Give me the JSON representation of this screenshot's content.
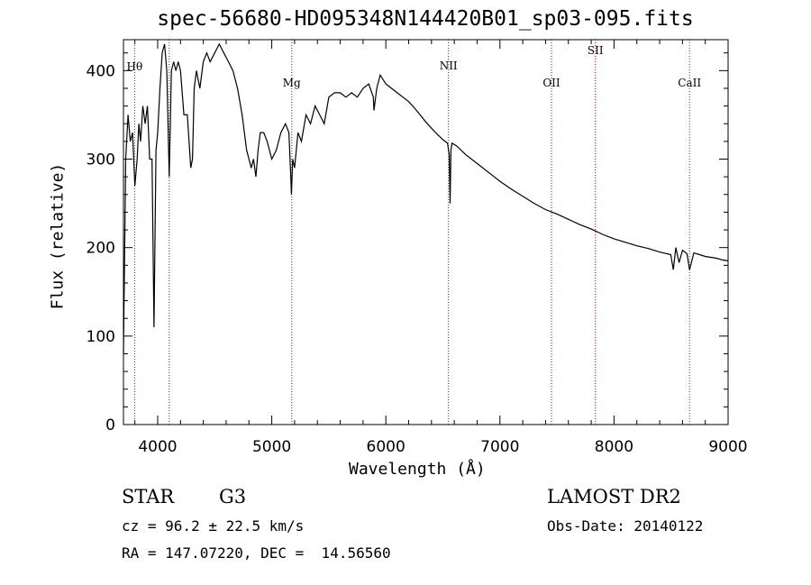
{
  "header": {
    "title": "spec-56680-HD095348N144420B01_sp03-095.fits"
  },
  "info": {
    "object_class": "STAR",
    "subclass": "G3",
    "redshift_line": "cz = 96.2 ± 22.5 km/s",
    "coords_line": "RA = 147.07220, DEC =  14.56560",
    "survey": "LAMOST DR2",
    "obs_date_line": "Obs-Date: 20140122"
  },
  "chart_data": {
    "type": "line",
    "title": "spec-56680-HD095348N144420B01_sp03-095.fits",
    "xlabel": "Wavelength (Å)",
    "ylabel": "Flux (relative)",
    "xlim": [
      3700,
      9000
    ],
    "ylim": [
      0,
      435
    ],
    "x_ticks": [
      4000,
      5000,
      6000,
      7000,
      8000,
      9000
    ],
    "y_ticks": [
      0,
      100,
      200,
      300,
      400
    ],
    "line_markers": [
      {
        "label": "Hθ",
        "x": 3798
      },
      {
        "label": "",
        "x": 4101
      },
      {
        "label": "Mg",
        "x": 5175
      },
      {
        "label": "NII",
        "x": 6549
      },
      {
        "label": "OII",
        "x": 7452
      },
      {
        "label": "SII",
        "x": 7837
      },
      {
        "label": "CaII",
        "x": 8662
      }
    ],
    "series": [
      {
        "x": [
          3700,
          3720,
          3740,
          3760,
          3780,
          3800,
          3820,
          3835,
          3850,
          3870,
          3890,
          3910,
          3930,
          3950,
          3968,
          3985,
          4000,
          4020,
          4040,
          4060,
          4080,
          4101,
          4120,
          4140,
          4160,
          4180,
          4200,
          4230,
          4260,
          4290,
          4305,
          4320,
          4340,
          4370,
          4400,
          4430,
          4460,
          4500,
          4540,
          4580,
          4620,
          4660,
          4700,
          4740,
          4780,
          4800,
          4820,
          4840,
          4861,
          4880,
          4900,
          4930,
          4960,
          5000,
          5040,
          5080,
          5120,
          5150,
          5167,
          5172,
          5183,
          5200,
          5230,
          5260,
          5300,
          5340,
          5380,
          5420,
          5460,
          5500,
          5550,
          5600,
          5650,
          5700,
          5750,
          5800,
          5850,
          5890,
          5896,
          5920,
          5950,
          6000,
          6050,
          6100,
          6150,
          6200,
          6250,
          6300,
          6350,
          6400,
          6450,
          6500,
          6540,
          6555,
          6563,
          6570,
          6580,
          6620,
          6700,
          6800,
          6900,
          7000,
          7100,
          7200,
          7300,
          7400,
          7500,
          7600,
          7700,
          7800,
          7900,
          8000,
          8100,
          8200,
          8300,
          8400,
          8498,
          8520,
          8542,
          8570,
          8600,
          8640,
          8662,
          8700,
          8750,
          8800,
          8850,
          8900,
          8950,
          9000
        ],
        "values": [
          80,
          300,
          350,
          320,
          330,
          270,
          300,
          340,
          320,
          360,
          340,
          360,
          300,
          300,
          110,
          310,
          330,
          380,
          420,
          430,
          400,
          280,
          400,
          410,
          400,
          410,
          400,
          350,
          350,
          290,
          300,
          380,
          400,
          380,
          410,
          420,
          410,
          420,
          430,
          420,
          410,
          400,
          380,
          350,
          310,
          300,
          290,
          300,
          280,
          310,
          330,
          330,
          320,
          300,
          310,
          330,
          340,
          330,
          280,
          260,
          300,
          290,
          330,
          320,
          350,
          340,
          360,
          350,
          340,
          370,
          375,
          375,
          370,
          375,
          370,
          380,
          385,
          370,
          355,
          380,
          395,
          385,
          380,
          375,
          370,
          365,
          358,
          350,
          342,
          335,
          328,
          322,
          318,
          305,
          250,
          310,
          318,
          315,
          305,
          295,
          285,
          275,
          266,
          258,
          250,
          243,
          238,
          232,
          226,
          221,
          215,
          210,
          206,
          202,
          199,
          195,
          192,
          175,
          200,
          183,
          197,
          193,
          175,
          194,
          192,
          190,
          189,
          188,
          186,
          185
        ]
      }
    ],
    "grid": false
  }
}
